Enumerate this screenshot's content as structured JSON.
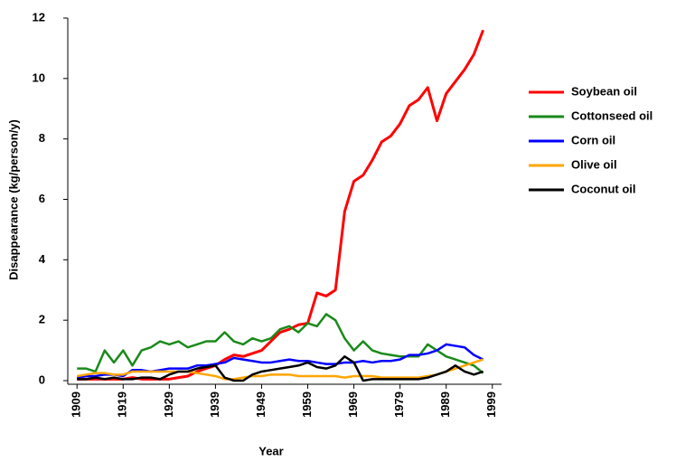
{
  "chart_data": {
    "type": "line",
    "x_label": "Year",
    "y_label": "Disappearance (kg/person/y)",
    "x": [
      1909,
      1911,
      1913,
      1915,
      1917,
      1919,
      1921,
      1923,
      1925,
      1927,
      1929,
      1931,
      1933,
      1935,
      1937,
      1939,
      1941,
      1943,
      1945,
      1947,
      1949,
      1951,
      1953,
      1955,
      1957,
      1959,
      1961,
      1963,
      1965,
      1967,
      1969,
      1971,
      1973,
      1975,
      1977,
      1979,
      1981,
      1983,
      1985,
      1987,
      1989,
      1991,
      1993,
      1995,
      1997
    ],
    "series": [
      {
        "name": "Soybean oil",
        "color": "#ff0000",
        "values": [
          0.05,
          0.05,
          0.05,
          0.05,
          0.05,
          0.05,
          0.1,
          0.05,
          0.05,
          0.05,
          0.05,
          0.1,
          0.15,
          0.3,
          0.4,
          0.5,
          0.7,
          0.85,
          0.8,
          0.9,
          1.0,
          1.3,
          1.6,
          1.7,
          1.85,
          1.9,
          2.9,
          2.8,
          3.0,
          5.6,
          6.6,
          6.8,
          7.3,
          7.9,
          8.1,
          8.5,
          9.1,
          9.3,
          9.7,
          8.6,
          9.5,
          9.9,
          10.3,
          10.8,
          11.6
        ]
      },
      {
        "name": "Cottonseed oil",
        "color": "#1a8a1a",
        "values": [
          0.4,
          0.4,
          0.3,
          1.0,
          0.6,
          1.0,
          0.5,
          1.0,
          1.1,
          1.3,
          1.2,
          1.3,
          1.1,
          1.2,
          1.3,
          1.3,
          1.6,
          1.3,
          1.2,
          1.4,
          1.3,
          1.4,
          1.7,
          1.8,
          1.6,
          1.9,
          1.8,
          2.2,
          2.0,
          1.4,
          1.0,
          1.3,
          1.0,
          0.9,
          0.85,
          0.8,
          0.8,
          0.8,
          1.2,
          1.0,
          0.8,
          0.7,
          0.6,
          0.5,
          0.25
        ]
      },
      {
        "name": "Corn oil",
        "color": "#0000ff",
        "values": [
          0.1,
          0.15,
          0.15,
          0.2,
          0.2,
          0.15,
          0.35,
          0.35,
          0.3,
          0.35,
          0.4,
          0.4,
          0.4,
          0.5,
          0.5,
          0.55,
          0.6,
          0.75,
          0.7,
          0.65,
          0.6,
          0.6,
          0.65,
          0.7,
          0.65,
          0.65,
          0.6,
          0.55,
          0.55,
          0.6,
          0.6,
          0.65,
          0.6,
          0.65,
          0.65,
          0.7,
          0.85,
          0.85,
          0.9,
          1.0,
          1.2,
          1.15,
          1.1,
          0.85,
          0.7
        ]
      },
      {
        "name": "Olive oil",
        "color": "#ffa500",
        "values": [
          0.15,
          0.2,
          0.25,
          0.25,
          0.2,
          0.2,
          0.3,
          0.3,
          0.3,
          0.3,
          0.3,
          0.3,
          0.3,
          0.25,
          0.2,
          0.15,
          0.05,
          0.05,
          0.1,
          0.15,
          0.15,
          0.2,
          0.2,
          0.2,
          0.15,
          0.15,
          0.15,
          0.15,
          0.15,
          0.1,
          0.15,
          0.15,
          0.15,
          0.1,
          0.1,
          0.1,
          0.1,
          0.1,
          0.15,
          0.2,
          0.3,
          0.4,
          0.5,
          0.6,
          0.7
        ]
      },
      {
        "name": "Coconut oil",
        "color": "#000000",
        "values": [
          0.05,
          0.05,
          0.1,
          0.05,
          0.1,
          0.05,
          0.05,
          0.1,
          0.1,
          0.05,
          0.2,
          0.3,
          0.3,
          0.4,
          0.45,
          0.5,
          0.1,
          0,
          0,
          0.2,
          0.3,
          0.35,
          0.4,
          0.45,
          0.5,
          0.6,
          0.45,
          0.4,
          0.5,
          0.8,
          0.6,
          0,
          0.05,
          0.05,
          0.05,
          0.05,
          0.05,
          0.05,
          0.1,
          0.2,
          0.3,
          0.5,
          0.3,
          0.2,
          0.3
        ]
      }
    ],
    "xlim": [
      1907,
      2001
    ],
    "xticks": [
      1909,
      1919,
      1929,
      1939,
      1949,
      1959,
      1969,
      1979,
      1989,
      1999
    ],
    "ylim": [
      0,
      12
    ],
    "yticks": [
      0,
      2,
      4,
      6,
      8,
      10,
      12
    ],
    "grid": false,
    "legend": "right"
  }
}
